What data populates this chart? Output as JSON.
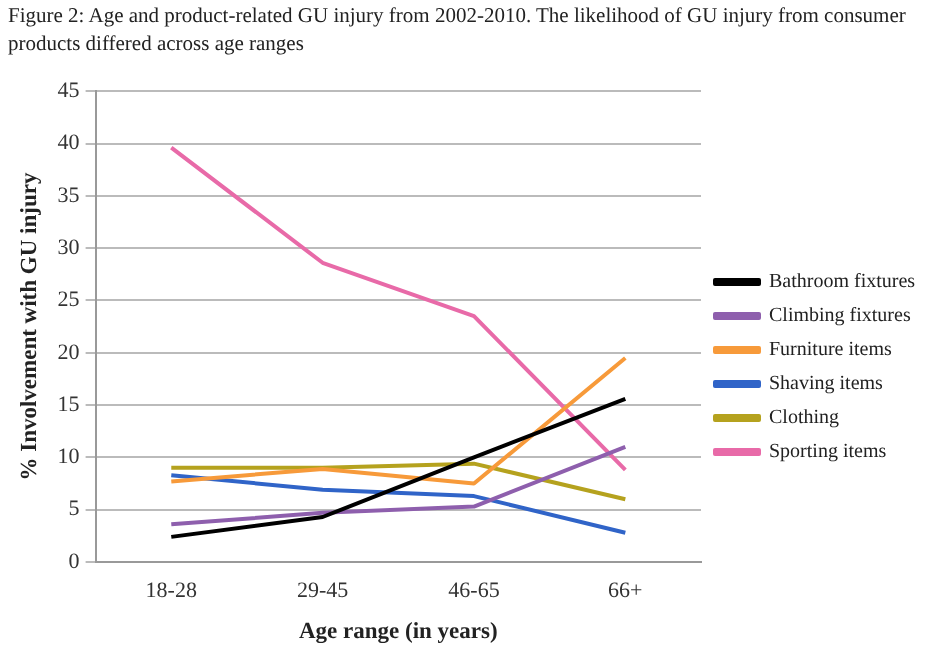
{
  "chart_data": {
    "type": "line",
    "title": "Figure 2: Age and product-related GU injury from 2002-2010.  The likelihood of GU injury from consumer products differed across age ranges",
    "xlabel": "Age range (in years)",
    "ylabel": "% Involvement with GU injury",
    "categories": [
      "18-28",
      "29-45",
      "46-65",
      "66+"
    ],
    "series": [
      {
        "name": "Bathroom fixtures",
        "color": "#000000",
        "values": [
          2.4,
          4.3,
          10,
          15.6
        ]
      },
      {
        "name": "Climbing fixtures",
        "color": "#8e5fad",
        "values": [
          3.6,
          4.7,
          5.3,
          11
        ]
      },
      {
        "name": "Furniture items",
        "color": "#f79a3a",
        "values": [
          7.7,
          8.9,
          7.5,
          19.5
        ]
      },
      {
        "name": "Shaving items",
        "color": "#3064c8",
        "values": [
          8.3,
          6.9,
          6.3,
          2.8
        ]
      },
      {
        "name": "Clothing",
        "color": "#b5a21e",
        "values": [
          9,
          9,
          9.4,
          6
        ]
      },
      {
        "name": "Sporting items",
        "color": "#e86aa8",
        "values": [
          39.6,
          28.6,
          23.5,
          8.8
        ]
      }
    ],
    "ylim": [
      0,
      45
    ],
    "yticks": [
      0,
      5,
      10,
      15,
      20,
      25,
      30,
      35,
      40,
      45
    ],
    "grid": "y",
    "legend": "right",
    "marker": "none",
    "line_style": "solid"
  }
}
